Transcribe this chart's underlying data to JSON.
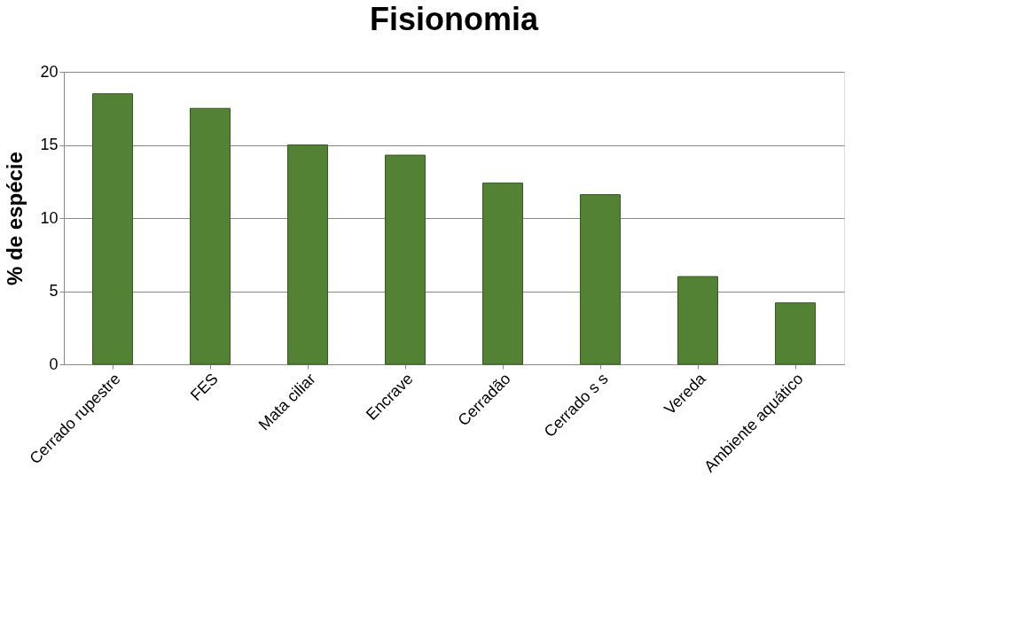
{
  "chart_data": {
    "type": "bar",
    "title": "Fisionomia",
    "ylabel": "% de espécie",
    "categories": [
      "Cerrado rupestre",
      "FES",
      "Mata ciliar",
      "Encrave",
      "Cerradão",
      "Cerrado s s",
      "Vereda",
      "Ambiente aquático"
    ],
    "values": [
      18.5,
      17.5,
      15.0,
      14.3,
      12.4,
      11.6,
      6.0,
      4.2
    ],
    "color": "#548235",
    "ylim": [
      0,
      20
    ],
    "yticks": [
      0,
      5,
      10,
      15,
      20
    ],
    "grid": "y"
  }
}
